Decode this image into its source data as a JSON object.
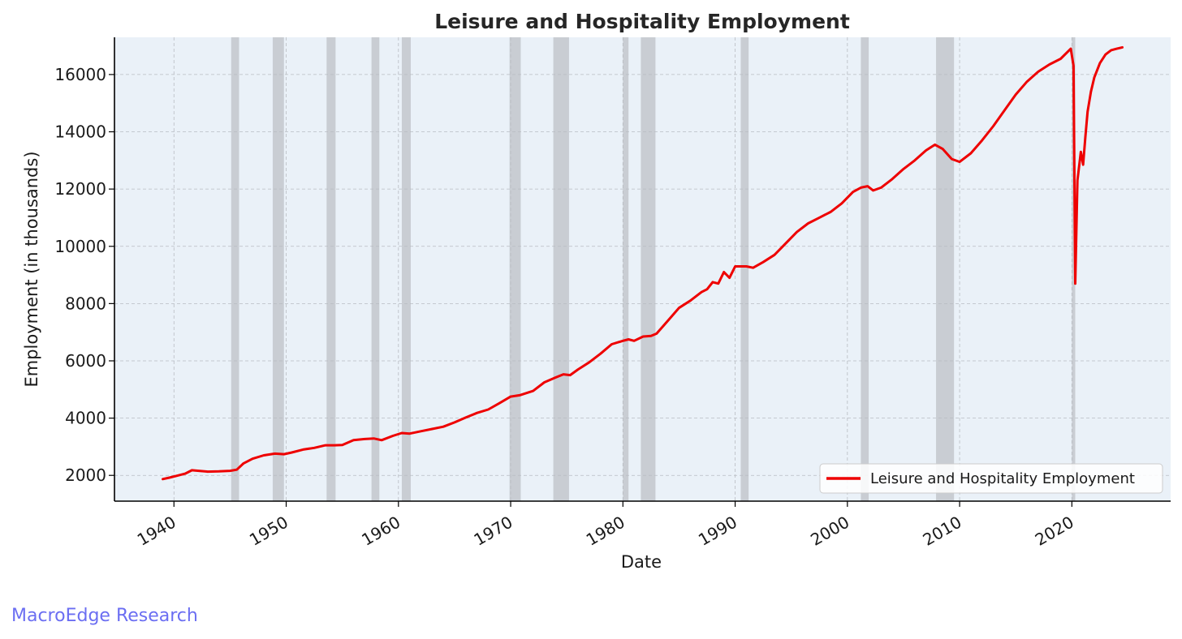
{
  "watermark": "MacroEdge Research",
  "colors": {
    "line": "#ee0000",
    "plot_background": "#eaf1f8",
    "recession": "#b3b6ba",
    "grid": "#b8bcc2",
    "watermark": "#6b6ef2"
  },
  "chart_data": {
    "type": "line",
    "title": "Leisure and Hospitality Employment",
    "xlabel": "Date",
    "ylabel": "Employment (in thousands)",
    "xlim": [
      1934.7,
      2028.8
    ],
    "ylim": [
      1100,
      17300
    ],
    "grid": true,
    "legend_position": "lower-right",
    "x_ticks": [
      1940,
      1950,
      1960,
      1970,
      1980,
      1990,
      2000,
      2010,
      2020
    ],
    "y_ticks": [
      2000,
      4000,
      6000,
      8000,
      10000,
      12000,
      14000,
      16000
    ],
    "recessions": [
      [
        1945.1,
        1945.8
      ],
      [
        1948.8,
        1949.8
      ],
      [
        1953.6,
        1954.4
      ],
      [
        1957.6,
        1958.3
      ],
      [
        1960.3,
        1961.1
      ],
      [
        1969.9,
        1970.9
      ],
      [
        1973.8,
        1975.2
      ],
      [
        1980.0,
        1980.5
      ],
      [
        1981.6,
        1982.9
      ],
      [
        1990.5,
        1991.2
      ],
      [
        2001.2,
        2001.9
      ],
      [
        2007.9,
        2009.5
      ],
      [
        2020.0,
        2020.3
      ]
    ],
    "series": [
      {
        "name": "Leisure and Hospitality Employment",
        "x": [
          1939.0,
          1939.6,
          1940.2,
          1941.0,
          1941.6,
          1942.2,
          1943.0,
          1944.0,
          1945.0,
          1945.6,
          1946.2,
          1947.0,
          1948.0,
          1949.0,
          1949.8,
          1950.5,
          1951.5,
          1952.5,
          1953.5,
          1954.3,
          1955.0,
          1956.0,
          1957.0,
          1957.8,
          1958.5,
          1959.5,
          1960.3,
          1961.0,
          1962.0,
          1963.0,
          1964.0,
          1965.0,
          1966.0,
          1967.0,
          1968.0,
          1969.0,
          1970.0,
          1970.8,
          1972.0,
          1973.0,
          1974.0,
          1974.7,
          1975.3,
          1976.0,
          1977.0,
          1978.0,
          1979.0,
          1980.0,
          1980.5,
          1981.0,
          1981.8,
          1982.5,
          1983.0,
          1984.0,
          1985.0,
          1986.0,
          1987.0,
          1987.5,
          1988.0,
          1988.5,
          1989.0,
          1989.5,
          1990.0,
          1990.6,
          1991.0,
          1991.6,
          1992.5,
          1993.5,
          1994.5,
          1995.5,
          1996.5,
          1997.5,
          1998.5,
          1999.5,
          2000.5,
          2001.2,
          2001.8,
          2002.3,
          2003.0,
          2004.0,
          2005.0,
          2006.0,
          2007.0,
          2007.8,
          2008.5,
          2009.3,
          2010.0,
          2011.0,
          2012.0,
          2013.0,
          2014.0,
          2015.0,
          2016.0,
          2017.0,
          2018.0,
          2019.0,
          2019.9,
          2020.15,
          2020.3,
          2020.5,
          2020.8,
          2021.0,
          2021.2,
          2021.4,
          2021.7,
          2022.0,
          2022.5,
          2023.0,
          2023.5,
          2024.0,
          2024.5
        ],
        "values": [
          1870,
          1920,
          1980,
          2060,
          2180,
          2160,
          2130,
          2140,
          2160,
          2200,
          2420,
          2580,
          2700,
          2760,
          2740,
          2800,
          2900,
          2960,
          3050,
          3050,
          3060,
          3230,
          3270,
          3290,
          3230,
          3380,
          3480,
          3460,
          3540,
          3620,
          3700,
          3850,
          4020,
          4180,
          4300,
          4520,
          4750,
          4800,
          4950,
          5250,
          5420,
          5530,
          5500,
          5700,
          5950,
          6250,
          6580,
          6700,
          6750,
          6700,
          6850,
          6870,
          6950,
          7400,
          7850,
          8100,
          8400,
          8500,
          8750,
          8700,
          9100,
          8900,
          9300,
          9300,
          9300,
          9250,
          9450,
          9700,
          10100,
          10500,
          10800,
          11000,
          11200,
          11500,
          11900,
          12050,
          12100,
          11950,
          12050,
          12350,
          12700,
          13000,
          13350,
          13550,
          13400,
          13050,
          12950,
          13250,
          13700,
          14200,
          14750,
          15300,
          15750,
          16100,
          16350,
          16550,
          16900,
          16300,
          8700,
          12300,
          13300,
          12850,
          13800,
          14700,
          15400,
          15900,
          16400,
          16700,
          16850,
          16900,
          16950
        ]
      }
    ]
  }
}
